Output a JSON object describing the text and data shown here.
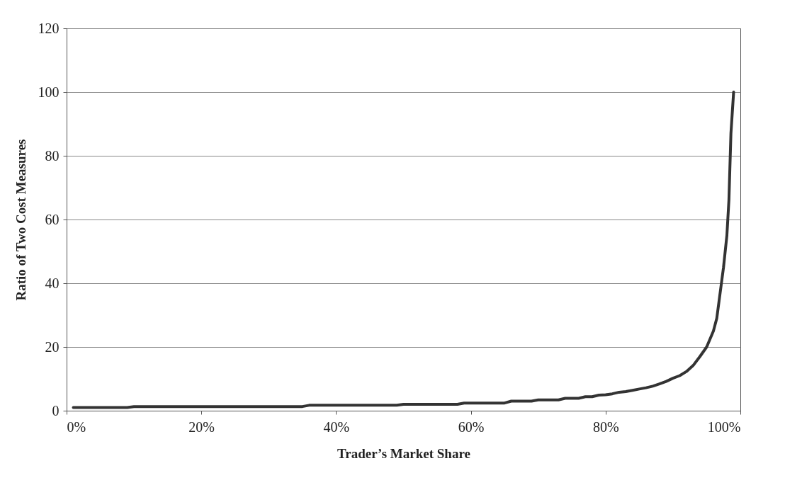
{
  "chart_data": {
    "type": "line",
    "xlabel": "Trader’s Market Share",
    "ylabel": "Ratio of Two Cost Measures",
    "x": [
      1,
      9,
      10,
      35,
      36,
      49,
      50,
      58,
      59,
      65,
      66,
      69,
      70,
      73,
      74,
      76,
      77,
      78,
      79,
      80,
      81,
      82,
      83,
      84,
      85,
      86,
      87,
      88,
      89,
      90,
      91,
      92,
      93,
      94,
      95,
      96,
      96.5,
      97,
      97.5,
      98,
      98.3,
      98.6,
      99
    ],
    "series": [
      {
        "color": "#333333",
        "values": [
          1,
          1,
          1.3,
          1.3,
          1.7,
          1.7,
          2,
          2,
          2.4,
          2.4,
          3,
          3,
          3.4,
          3.4,
          3.9,
          3.9,
          4.4,
          4.4,
          4.9,
          5,
          5.3,
          5.8,
          6,
          6.4,
          6.8,
          7.2,
          7.7,
          8.4,
          9.2,
          10.2,
          11,
          12.3,
          14.2,
          17,
          20,
          25,
          29,
          37,
          45,
          55,
          66,
          87,
          100
        ]
      }
    ],
    "xlim": [
      0,
      100
    ],
    "xticks": [
      {
        "value": 0,
        "label": "0%"
      },
      {
        "value": 20,
        "label": "20%"
      },
      {
        "value": 40,
        "label": "40%"
      },
      {
        "value": 60,
        "label": "60%"
      },
      {
        "value": 80,
        "label": "80%"
      },
      {
        "value": 100,
        "label": "100%"
      }
    ],
    "ylim": [
      0,
      120
    ],
    "yticks": [
      0,
      20,
      40,
      60,
      80,
      100,
      120
    ],
    "grid": "y",
    "marker": "none",
    "line_style": "solid"
  }
}
